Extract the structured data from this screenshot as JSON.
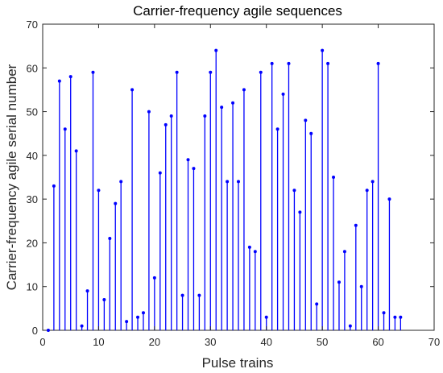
{
  "chart_data": {
    "type": "stem",
    "title": "Carrier-frequency agile sequences",
    "xlabel": "Pulse trains",
    "ylabel": "Carrier-frequency agile serial number",
    "xlim": [
      0,
      70
    ],
    "ylim": [
      0,
      70
    ],
    "xticks": [
      0,
      10,
      20,
      30,
      40,
      50,
      60,
      70
    ],
    "yticks": [
      0,
      10,
      20,
      30,
      40,
      50,
      60,
      70
    ],
    "grid": false,
    "color": "#0000ff",
    "series": [
      {
        "x": [
          1,
          2,
          3,
          4,
          5,
          6,
          7,
          8,
          9,
          10,
          11,
          12,
          13,
          14,
          15,
          16,
          17,
          18,
          19,
          20,
          21,
          22,
          23,
          24,
          25,
          26,
          27,
          28,
          29,
          30,
          31,
          32,
          33,
          34,
          35,
          36,
          37,
          38,
          39,
          40,
          41,
          42,
          43,
          44,
          45,
          46,
          47,
          48,
          49,
          50,
          51,
          52,
          53,
          54,
          55,
          56,
          57,
          58,
          59,
          60,
          61,
          62,
          63,
          64
        ],
        "values": [
          0,
          33,
          57,
          46,
          58,
          41,
          1,
          9,
          59,
          32,
          7,
          21,
          29,
          34,
          2,
          55,
          3,
          4,
          50,
          12,
          36,
          47,
          49,
          59,
          8,
          39,
          37,
          8,
          49,
          59,
          64,
          51,
          34,
          52,
          34,
          55,
          19,
          18,
          59,
          3,
          61,
          46,
          54,
          61,
          32,
          27,
          48,
          45,
          6,
          64,
          61,
          35,
          11,
          18,
          1,
          24,
          10,
          32,
          34,
          61,
          4,
          30,
          3,
          3
        ]
      }
    ]
  }
}
